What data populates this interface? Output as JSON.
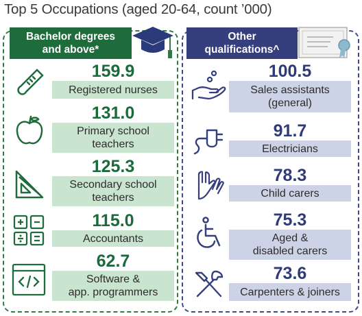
{
  "title": "Top 5 Occupations (aged 20-64, count ’000)",
  "colors": {
    "green": "#1e6b3c",
    "green_light": "#c9e4cf",
    "blue": "#353f7d",
    "blue_light": "#cdd3e6"
  },
  "left": {
    "header": "Bachelor degrees\nand above*",
    "header_icon": "graduation-cap-icon",
    "items": [
      {
        "value": "159.9",
        "label": "Registered nurses",
        "icon": "thermometer-icon"
      },
      {
        "value": "131.0",
        "label": "Primary school\nteachers",
        "icon": "apple-icon"
      },
      {
        "value": "125.3",
        "label": "Secondary school\nteachers",
        "icon": "ruler-triangle-icon"
      },
      {
        "value": "115.0",
        "label": "Accountants",
        "icon": "calculator-icon"
      },
      {
        "value": "62.7",
        "label": "Software &\napp. programmers",
        "icon": "code-window-icon"
      }
    ]
  },
  "right": {
    "header": "Other\nqualifications^",
    "header_icon": "certificate-icon",
    "items": [
      {
        "value": "100.5",
        "label": "Sales assistants\n(general)",
        "icon": "hand-coins-icon"
      },
      {
        "value": "91.7",
        "label": "Electricians",
        "icon": "plug-icon"
      },
      {
        "value": "78.3",
        "label": "Child carers",
        "icon": "hands-icon"
      },
      {
        "value": "75.3",
        "label": "Aged &\ndisabled carers",
        "icon": "wheelchair-icon"
      },
      {
        "value": "73.6",
        "label": "Carpenters & joiners",
        "icon": "tools-icon"
      }
    ]
  }
}
